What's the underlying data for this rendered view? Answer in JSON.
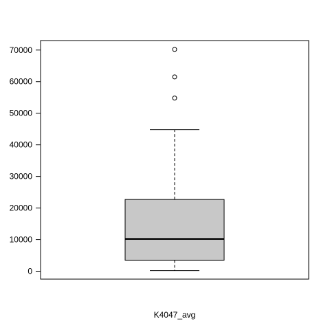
{
  "chart_data": {
    "type": "boxplot",
    "title": "",
    "xlabel": "K4047_avg",
    "ylabel": "",
    "ylim": [
      -2500,
      73000
    ],
    "yticks": [
      0,
      10000,
      20000,
      30000,
      40000,
      50000,
      60000,
      70000
    ],
    "ytick_labels": [
      "0",
      "10000",
      "20000",
      "30000",
      "40000",
      "50000",
      "60000",
      "70000"
    ],
    "grid": false,
    "box": {
      "whisker_low": 200,
      "q1": 3500,
      "median": 10200,
      "q3": 22700,
      "whisker_high": 44800
    },
    "outliers": [
      54800,
      61500,
      70200
    ],
    "colors": {
      "box_fill": "#c8c8c8",
      "stroke": "#000000"
    }
  }
}
